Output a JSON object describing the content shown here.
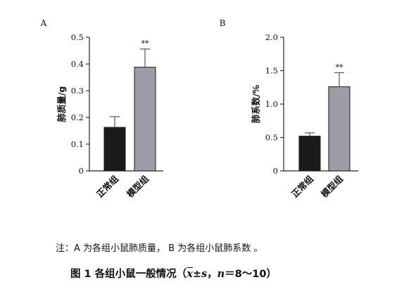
{
  "chart_data": [
    {
      "panel_label": "A",
      "type": "bar",
      "categories": [
        "正常组",
        "模型组"
      ],
      "values": [
        0.163,
        0.388
      ],
      "errors": [
        0.04,
        0.068
      ],
      "significance": [
        "",
        "**"
      ],
      "bar_colors": [
        "#1a1a1a",
        "#9c9ca8"
      ],
      "ylabel": "肺质量/g",
      "ylim": [
        0,
        0.5
      ],
      "yticks": [
        "0",
        "0.1",
        "0.2",
        "0.3",
        "0.4",
        "0.5"
      ]
    },
    {
      "panel_label": "B",
      "type": "bar",
      "categories": [
        "正常组",
        "模型组"
      ],
      "values": [
        0.52,
        1.26
      ],
      "errors": [
        0.05,
        0.21
      ],
      "significance": [
        "",
        "**"
      ],
      "bar_colors": [
        "#1a1a1a",
        "#9c9ca8"
      ],
      "ylabel": "肺系数/%",
      "ylim": [
        0,
        2.0
      ],
      "yticks": [
        "0",
        "0.5",
        "1.0",
        "1.5",
        "2.0"
      ]
    }
  ],
  "note": "注：A 为各组小鼠肺质量，  B 为各组小鼠肺系数  。",
  "caption": {
    "prefix": "图 1    各组小鼠一般情况（",
    "xbar": "x",
    "pm": "±",
    "s": "s",
    "sep": "，",
    "n": "n",
    "tail": "＝8～10）"
  }
}
